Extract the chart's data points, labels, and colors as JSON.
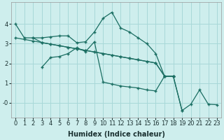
{
  "xlabel": "Humidex (Indice chaleur)",
  "bg_color": "#ceeeed",
  "grid_color": "#a8d8d8",
  "line_color": "#1a6e62",
  "line1_x": [
    0,
    1,
    2,
    3,
    4,
    5,
    6,
    7,
    8,
    9,
    10,
    11,
    12,
    13,
    14,
    15,
    16,
    17,
    18
  ],
  "line1_y": [
    4.0,
    3.3,
    3.3,
    3.3,
    3.35,
    3.4,
    3.4,
    3.05,
    3.1,
    3.6,
    4.3,
    4.6,
    3.8,
    3.6,
    3.3,
    3.0,
    2.5,
    1.35,
    1.35
  ],
  "line2_x": [
    0,
    1,
    2,
    3,
    4,
    5,
    6,
    7,
    8,
    9,
    10,
    11,
    12,
    13,
    14,
    15,
    16,
    17,
    18
  ],
  "line2_y": [
    3.3,
    3.22,
    3.14,
    3.06,
    2.98,
    2.9,
    2.82,
    2.74,
    2.66,
    2.58,
    2.5,
    2.42,
    2.34,
    2.26,
    2.18,
    2.1,
    2.02,
    1.35,
    1.35
  ],
  "line3_x": [
    3,
    4,
    5,
    6,
    7,
    8,
    9,
    10,
    11,
    12,
    13,
    14,
    15,
    16,
    17,
    18,
    19,
    20,
    21,
    22,
    23
  ],
  "line3_y": [
    1.8,
    2.3,
    2.35,
    2.5,
    2.8,
    2.6,
    3.1,
    1.05,
    0.95,
    0.85,
    0.8,
    0.75,
    0.65,
    0.6,
    1.35,
    1.35,
    -0.4,
    -0.08,
    0.65,
    -0.08,
    -0.1
  ],
  "line4_x": [
    2,
    3,
    4,
    5,
    6,
    7,
    8,
    9,
    10,
    11,
    12,
    13,
    14,
    15,
    16,
    17,
    18,
    19
  ],
  "line4_y": [
    3.3,
    3.06,
    2.98,
    2.9,
    2.82,
    2.74,
    2.66,
    2.58,
    2.5,
    2.42,
    2.34,
    2.26,
    2.18,
    2.1,
    2.02,
    1.35,
    1.35,
    -0.4
  ]
}
